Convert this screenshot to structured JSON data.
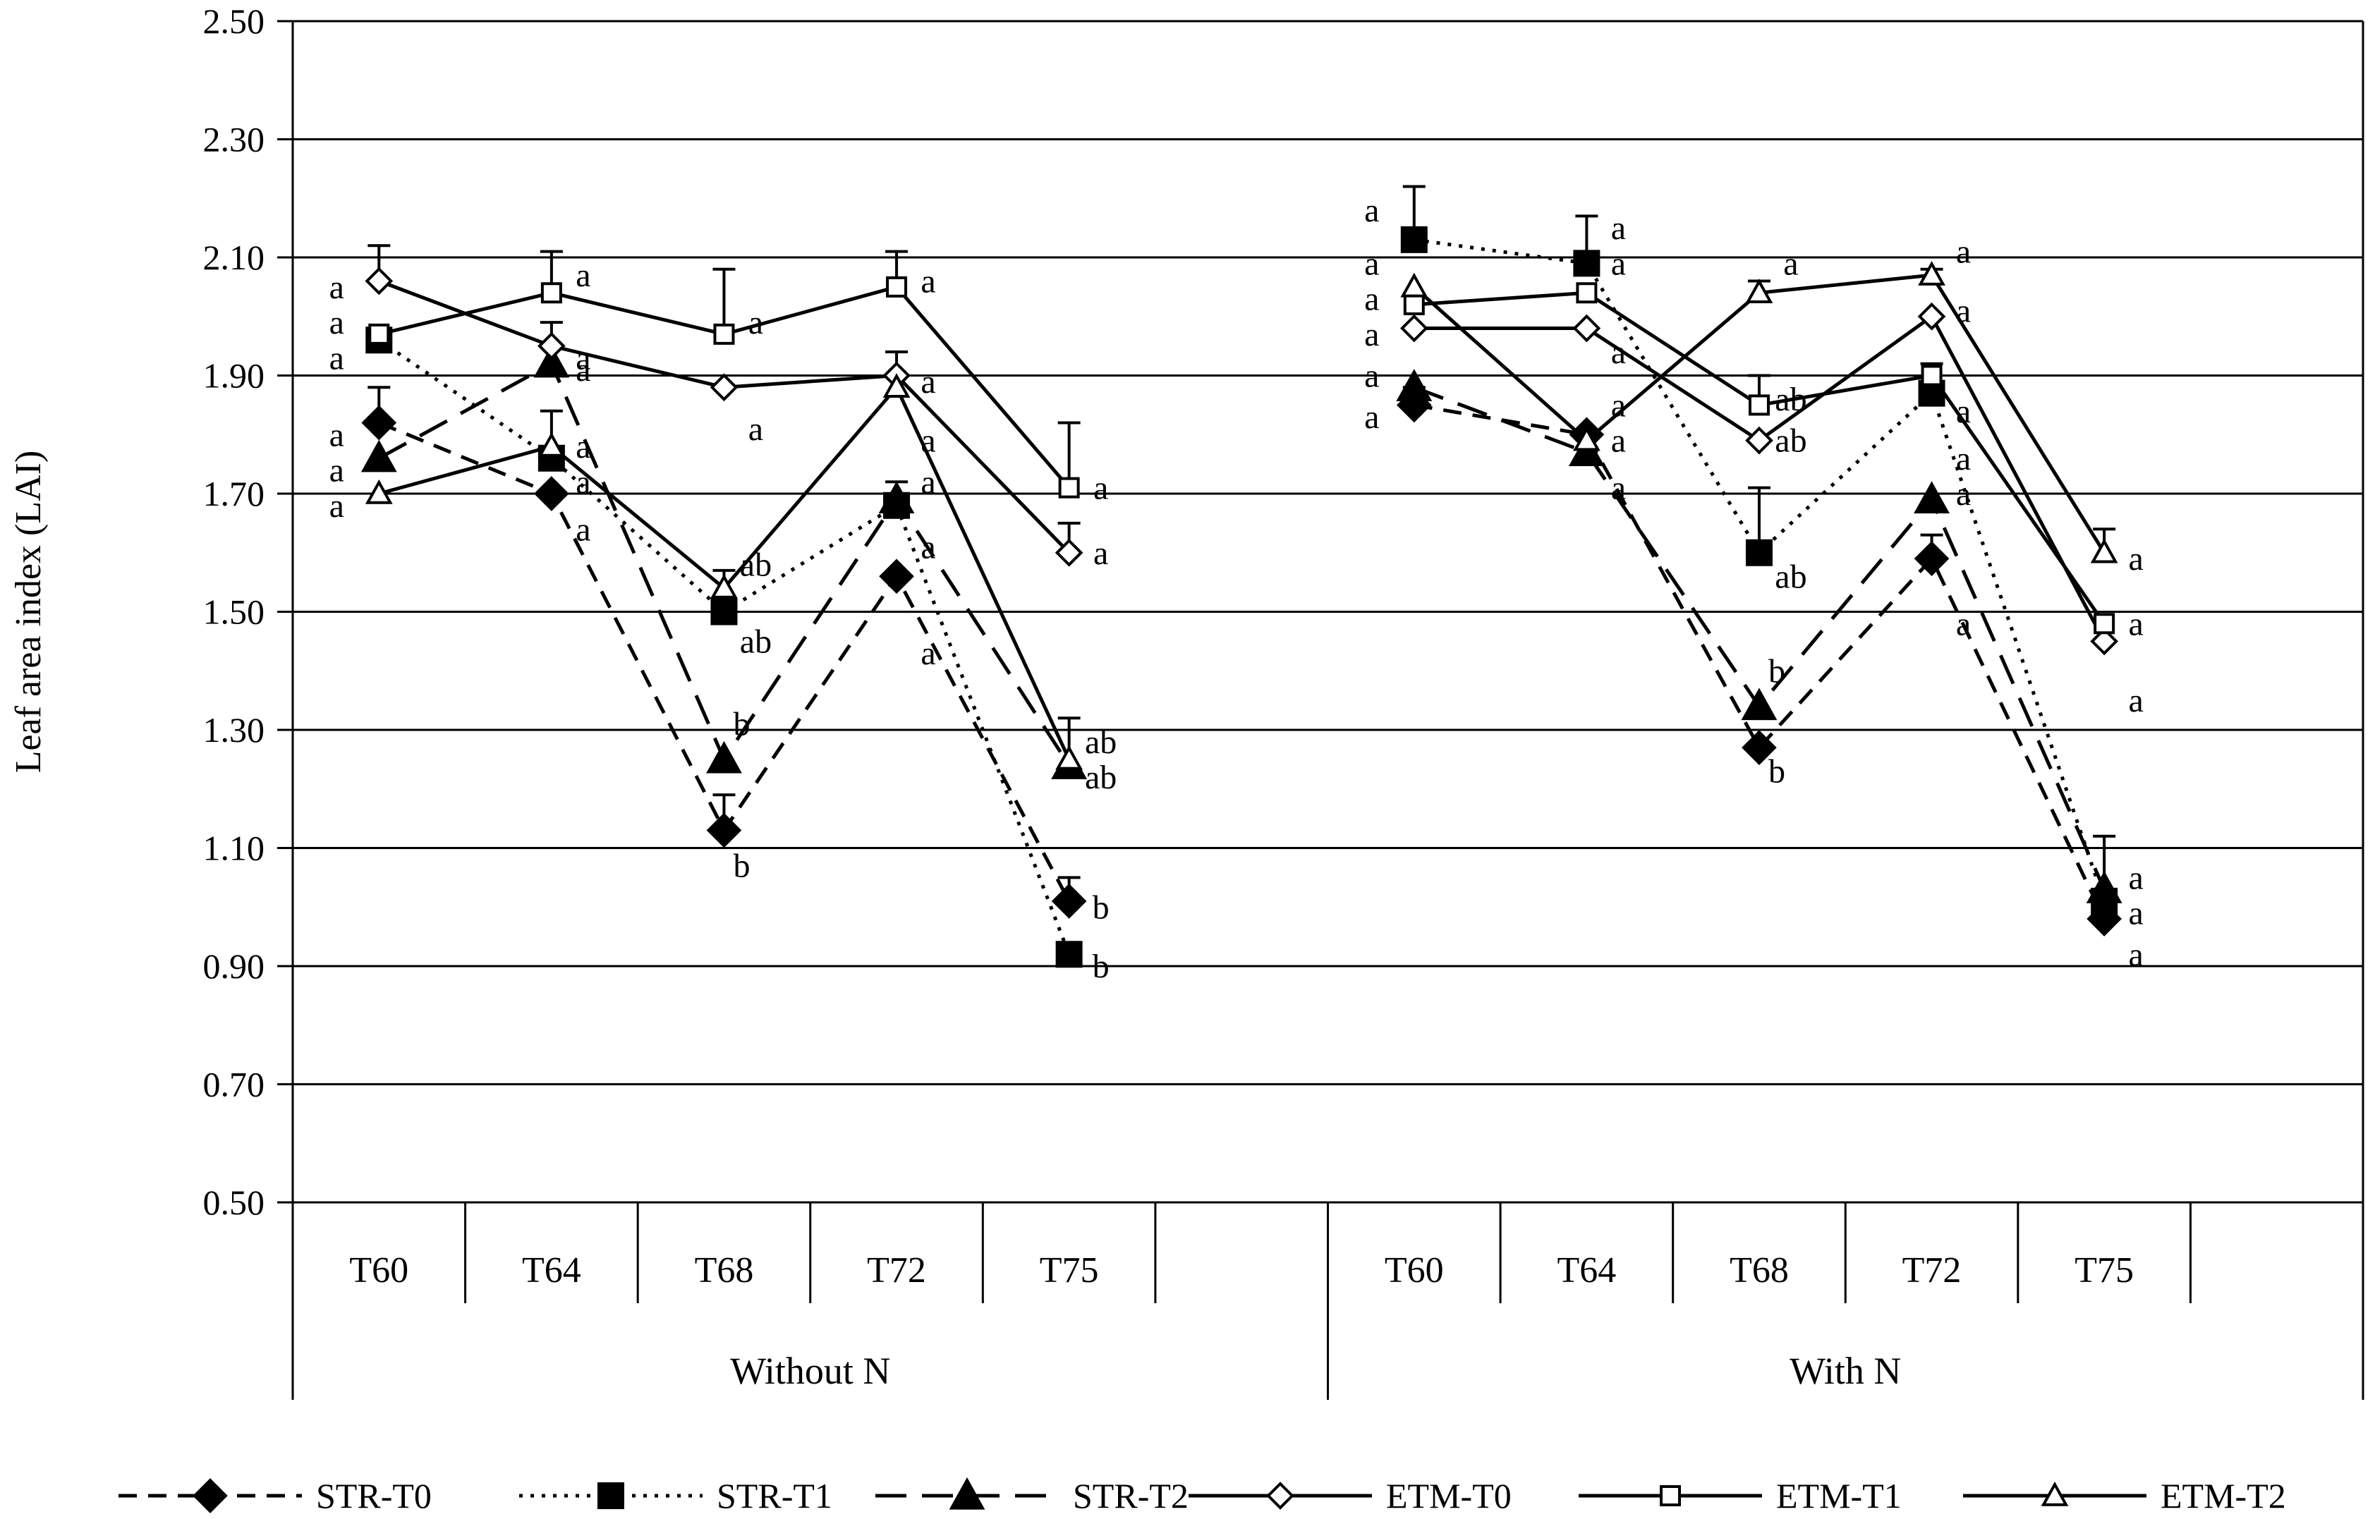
{
  "chart_data": {
    "type": "line",
    "title": "",
    "ylabel": "Leaf area index (LAI)",
    "xlabel": "",
    "ylim": [
      0.5,
      2.5
    ],
    "yticks": [
      "0.50",
      "0.70",
      "0.90",
      "1.10",
      "1.30",
      "1.50",
      "1.70",
      "1.90",
      "2.10",
      "2.30",
      "2.50"
    ],
    "grid": "horizontal",
    "legend_position": "bottom",
    "groups": [
      {
        "name": "Without N",
        "categories": [
          "T60",
          "T64",
          "T68",
          "T72",
          "T75"
        ]
      },
      {
        "name": "With N",
        "categories": [
          "T60",
          "T64",
          "T68",
          "T72",
          "T75"
        ]
      }
    ],
    "series": [
      {
        "name": "STR-T0",
        "marker": "diamond-filled",
        "dash": "dashed",
        "without_n": [
          1.82,
          1.7,
          1.13,
          1.56,
          1.01
        ],
        "with_n": [
          1.85,
          1.8,
          1.27,
          1.59,
          0.98
        ],
        "err_without_n": [
          0.06,
          0,
          0.06,
          0,
          0.04
        ],
        "err_with_n": [
          0.03,
          0,
          0,
          0.04,
          0
        ]
      },
      {
        "name": "STR-T1",
        "marker": "square-filled",
        "dash": "dotted",
        "without_n": [
          1.96,
          1.76,
          1.5,
          1.68,
          0.92
        ],
        "with_n": [
          2.13,
          2.09,
          1.6,
          1.87,
          1.01
        ],
        "err_without_n": [
          0,
          0.08,
          0.07,
          0,
          0
        ],
        "err_with_n": [
          0.09,
          0.08,
          0.11,
          0.05,
          0
        ]
      },
      {
        "name": "STR-T2",
        "marker": "triangle-filled",
        "dash": "long-dash",
        "without_n": [
          1.76,
          1.92,
          1.25,
          1.69,
          1.24
        ],
        "with_n": [
          1.88,
          1.77,
          1.34,
          1.69,
          1.03
        ],
        "err_without_n": [
          0,
          0.07,
          0,
          0.03,
          0
        ],
        "err_with_n": [
          0,
          0,
          0,
          0,
          0.09
        ]
      },
      {
        "name": "ETM-T0",
        "marker": "diamond-open",
        "dash": "solid",
        "without_n": [
          2.06,
          1.95,
          1.88,
          1.9,
          1.6
        ],
        "with_n": [
          1.98,
          1.98,
          1.79,
          2.0,
          1.45
        ],
        "err_without_n": [
          0.06,
          0,
          0,
          0.04,
          0.05
        ],
        "err_with_n": [
          0,
          0,
          0,
          0,
          0
        ]
      },
      {
        "name": "ETM-T1",
        "marker": "square-open",
        "dash": "solid",
        "without_n": [
          1.97,
          2.04,
          1.97,
          2.05,
          1.71
        ],
        "with_n": [
          2.02,
          2.04,
          1.85,
          1.9,
          1.48
        ],
        "err_without_n": [
          0,
          0.07,
          0.11,
          0.06,
          0.11
        ],
        "err_with_n": [
          0,
          0,
          0.05,
          0,
          0
        ]
      },
      {
        "name": "ETM-T2",
        "marker": "triangle-open",
        "dash": "solid",
        "without_n": [
          1.7,
          1.78,
          1.54,
          1.88,
          1.25
        ],
        "with_n": [
          2.05,
          1.79,
          2.04,
          2.07,
          1.6
        ],
        "err_without_n": [
          0,
          0,
          0,
          0,
          0.07
        ],
        "err_with_n": [
          0,
          0,
          0.02,
          0.01,
          0.04
        ]
      }
    ],
    "annotations": [
      {
        "text": "a",
        "g": 0,
        "c": 0,
        "v": 2.05
      },
      {
        "text": "a",
        "g": 0,
        "c": 0,
        "v": 1.99
      },
      {
        "text": "a",
        "g": 0,
        "c": 0,
        "v": 1.93
      },
      {
        "text": "a",
        "g": 0,
        "c": 0,
        "v": 1.8
      },
      {
        "text": "a",
        "g": 0,
        "c": 0,
        "v": 1.74
      },
      {
        "text": "a",
        "g": 0,
        "c": 0,
        "v": 1.68
      },
      {
        "text": "a",
        "g": 0,
        "c": 1,
        "v": 2.07
      },
      {
        "text": "a",
        "g": 0,
        "c": 1,
        "v": 1.93
      },
      {
        "text": "a",
        "g": 0,
        "c": 1,
        "v": 1.78
      },
      {
        "text": "a",
        "g": 0,
        "c": 1,
        "v": 1.64
      },
      {
        "text": "a",
        "g": 0,
        "c": 1,
        "v": 1.91
      },
      {
        "text": "a",
        "g": 0,
        "c": 1,
        "v": 1.72
      },
      {
        "text": "a",
        "g": 0,
        "c": 2,
        "v": 1.99
      },
      {
        "text": "a",
        "g": 0,
        "c": 2,
        "v": 1.81
      },
      {
        "text": "ab",
        "g": 0,
        "c": 2,
        "v": 1.58
      },
      {
        "text": "ab",
        "g": 0,
        "c": 2,
        "v": 1.45
      },
      {
        "text": "b",
        "g": 0,
        "c": 2,
        "v": 1.31
      },
      {
        "text": "b",
        "g": 0,
        "c": 2,
        "v": 1.07
      },
      {
        "text": "a",
        "g": 0,
        "c": 3,
        "v": 2.06
      },
      {
        "text": "a",
        "g": 0,
        "c": 3,
        "v": 1.89
      },
      {
        "text": "a",
        "g": 0,
        "c": 3,
        "v": 1.79
      },
      {
        "text": "a",
        "g": 0,
        "c": 3,
        "v": 1.72
      },
      {
        "text": "a",
        "g": 0,
        "c": 3,
        "v": 1.61
      },
      {
        "text": "a",
        "g": 0,
        "c": 3,
        "v": 1.43
      },
      {
        "text": "a",
        "g": 0,
        "c": 4,
        "v": 1.71
      },
      {
        "text": "a",
        "g": 0,
        "c": 4,
        "v": 1.6
      },
      {
        "text": "ab",
        "g": 0,
        "c": 4,
        "v": 1.28
      },
      {
        "text": "ab",
        "g": 0,
        "c": 4,
        "v": 1.22
      },
      {
        "text": "b",
        "g": 0,
        "c": 4,
        "v": 1.0
      },
      {
        "text": "b",
        "g": 0,
        "c": 4,
        "v": 0.9
      },
      {
        "text": "a",
        "g": 1,
        "c": 0,
        "v": 2.18
      },
      {
        "text": "a",
        "g": 1,
        "c": 0,
        "v": 2.09
      },
      {
        "text": "a",
        "g": 1,
        "c": 0,
        "v": 2.03
      },
      {
        "text": "a",
        "g": 1,
        "c": 0,
        "v": 1.97
      },
      {
        "text": "a",
        "g": 1,
        "c": 0,
        "v": 1.9
      },
      {
        "text": "a",
        "g": 1,
        "c": 0,
        "v": 1.83
      },
      {
        "text": "a",
        "g": 1,
        "c": 1,
        "v": 2.15
      },
      {
        "text": "a",
        "g": 1,
        "c": 1,
        "v": 2.09
      },
      {
        "text": "a",
        "g": 1,
        "c": 1,
        "v": 1.94
      },
      {
        "text": "a",
        "g": 1,
        "c": 1,
        "v": 1.85
      },
      {
        "text": "a",
        "g": 1,
        "c": 1,
        "v": 1.79
      },
      {
        "text": "a",
        "g": 1,
        "c": 1,
        "v": 1.71
      },
      {
        "text": "a",
        "g": 1,
        "c": 2,
        "v": 2.09
      },
      {
        "text": "ab",
        "g": 1,
        "c": 2,
        "v": 1.86
      },
      {
        "text": "ab",
        "g": 1,
        "c": 2,
        "v": 1.79
      },
      {
        "text": "ab",
        "g": 1,
        "c": 2,
        "v": 1.56
      },
      {
        "text": "b",
        "g": 1,
        "c": 2,
        "v": 1.4
      },
      {
        "text": "b",
        "g": 1,
        "c": 2,
        "v": 1.23
      },
      {
        "text": "a",
        "g": 1,
        "c": 3,
        "v": 2.11
      },
      {
        "text": "a",
        "g": 1,
        "c": 3,
        "v": 2.01
      },
      {
        "text": "a",
        "g": 1,
        "c": 3,
        "v": 1.84
      },
      {
        "text": "a",
        "g": 1,
        "c": 3,
        "v": 1.76
      },
      {
        "text": "a",
        "g": 1,
        "c": 3,
        "v": 1.7
      },
      {
        "text": "a",
        "g": 1,
        "c": 3,
        "v": 1.48
      },
      {
        "text": "a",
        "g": 1,
        "c": 4,
        "v": 1.59
      },
      {
        "text": "a",
        "g": 1,
        "c": 4,
        "v": 1.48
      },
      {
        "text": "a",
        "g": 1,
        "c": 4,
        "v": 1.35
      },
      {
        "text": "a",
        "g": 1,
        "c": 4,
        "v": 1.05
      },
      {
        "text": "a",
        "g": 1,
        "c": 4,
        "v": 0.99
      },
      {
        "text": "a",
        "g": 1,
        "c": 4,
        "v": 0.92
      }
    ]
  }
}
